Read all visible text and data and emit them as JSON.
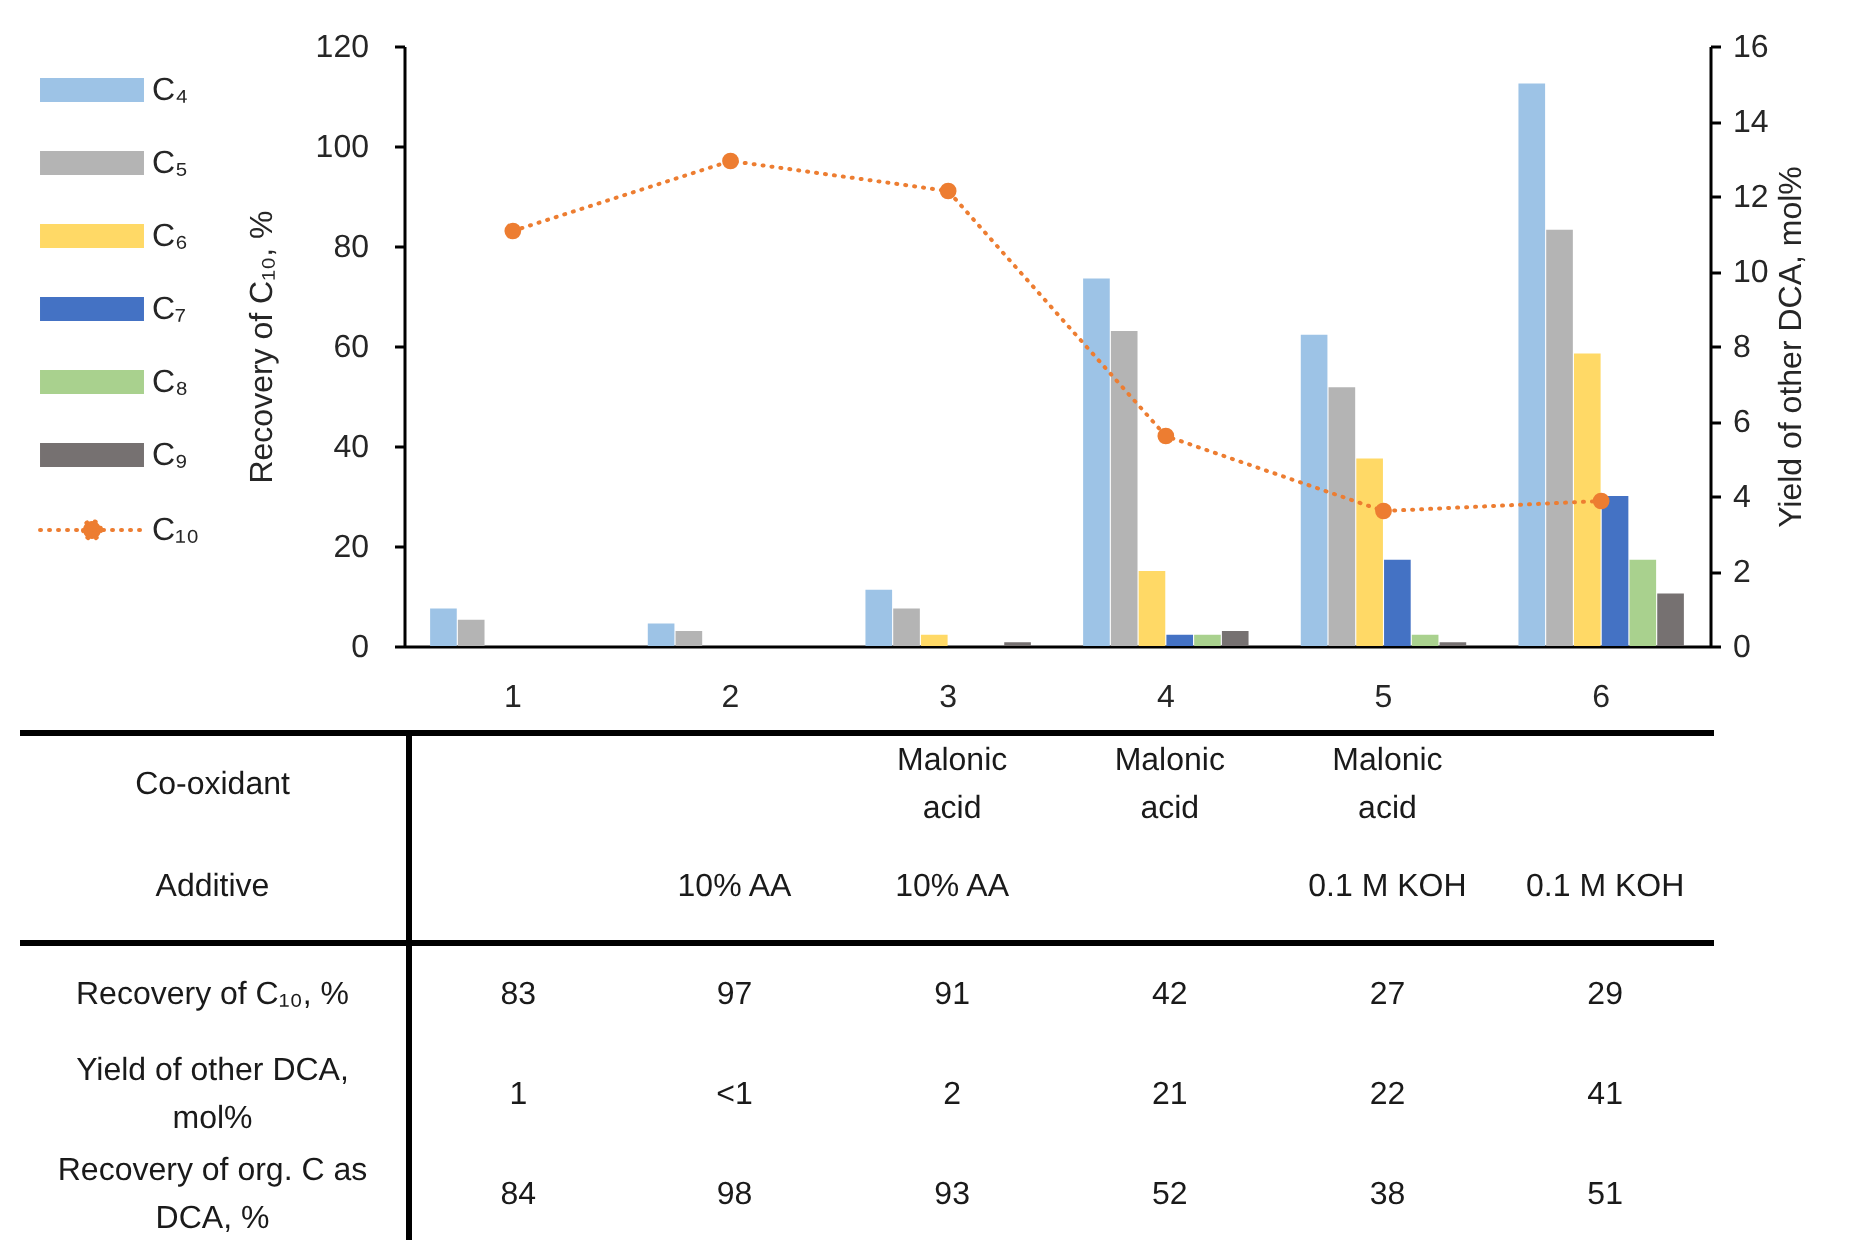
{
  "chart_data": {
    "type": "bar",
    "categories": [
      "1",
      "2",
      "3",
      "4",
      "5",
      "6"
    ],
    "ylabel": "Recovery of C₁₀, %",
    "y2label": "Yield of other DCA, mol%",
    "ylim": [
      0,
      120
    ],
    "yticks": [
      0,
      20,
      40,
      60,
      80,
      100,
      120
    ],
    "y2lim": [
      0,
      16
    ],
    "y2ticks": [
      0,
      2,
      4,
      6,
      8,
      10,
      12,
      14,
      16
    ],
    "grid": false,
    "legend": "left",
    "marker": "circle",
    "line_style": "dotted",
    "series": [
      {
        "name": "C₄",
        "color": "#9dc3e6",
        "axis": "y2",
        "values": [
          1.0,
          0.6,
          1.5,
          9.8,
          8.3,
          15.0
        ]
      },
      {
        "name": "C₅",
        "color": "#b4b4b4",
        "axis": "y2",
        "values": [
          0.7,
          0.4,
          1.0,
          8.4,
          6.9,
          11.1
        ]
      },
      {
        "name": "C₆",
        "color": "#ffd966",
        "axis": "y2",
        "values": [
          null,
          null,
          0.3,
          2.0,
          5.0,
          7.8
        ]
      },
      {
        "name": "C₇",
        "color": "#4472c4",
        "axis": "y2",
        "values": [
          null,
          null,
          null,
          0.3,
          2.3,
          4.0
        ]
      },
      {
        "name": "C₈",
        "color": "#a9d18e",
        "axis": "y2",
        "values": [
          null,
          null,
          null,
          0.3,
          0.3,
          2.3
        ]
      },
      {
        "name": "C₉",
        "color": "#767171",
        "axis": "y2",
        "values": [
          null,
          null,
          0.1,
          0.4,
          0.1,
          1.4
        ]
      },
      {
        "name": "C₁₀",
        "type": "line",
        "color": "#ed7d31",
        "values": [
          83,
          97,
          91,
          42,
          27,
          29
        ]
      }
    ],
    "annotations": [
      "Co-oxidant",
      "Malonic acid",
      "Malonic acid",
      "Malonic acid",
      "Additive",
      "10% AA",
      "10% AA",
      "0.1 M KOH",
      "0.1 M KOH",
      "Recovery of C₁₀, %",
      "83",
      "97",
      "91",
      "42",
      "27",
      "29",
      "Yield of other DCA, mol%",
      "1",
      "<1",
      "2",
      "21",
      "22",
      "41",
      "Recovery of org. C as DCA, %",
      "84",
      "98",
      "93",
      "52",
      "38",
      "51"
    ]
  }
}
